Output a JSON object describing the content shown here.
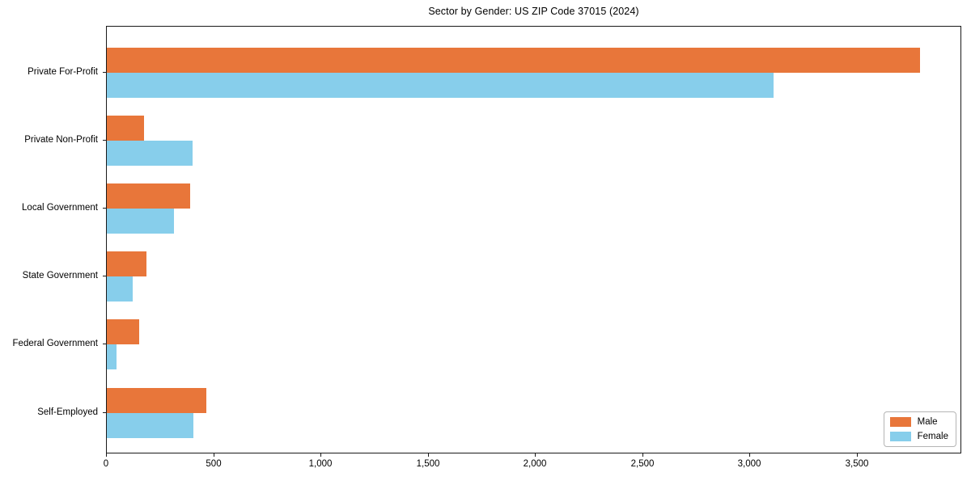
{
  "chart_data": {
    "type": "bar",
    "orientation": "horizontal",
    "title": "Sector by Gender: US ZIP Code 37015 (2024)",
    "categories": [
      "Private For-Profit",
      "Private Non-Profit",
      "Local Government",
      "State Government",
      "Federal Government",
      "Self-Employed"
    ],
    "series": [
      {
        "name": "Male",
        "color": "#E8763A",
        "values": [
          3790,
          175,
          390,
          185,
          150,
          465
        ]
      },
      {
        "name": "Female",
        "color": "#87CEEB",
        "values": [
          3110,
          400,
          315,
          120,
          45,
          405
        ]
      }
    ],
    "xlabel": "",
    "ylabel": "",
    "xlim": [
      0,
      3980
    ],
    "xticks": [
      0,
      500,
      1000,
      1500,
      2000,
      2500,
      3000,
      3500
    ],
    "xtick_labels": [
      "0",
      "500",
      "1,000",
      "1,500",
      "2,000",
      "2,500",
      "3,000",
      "3,500"
    ],
    "grid": false,
    "legend_position": "lower right",
    "spine_color": "#1a1a1a"
  }
}
